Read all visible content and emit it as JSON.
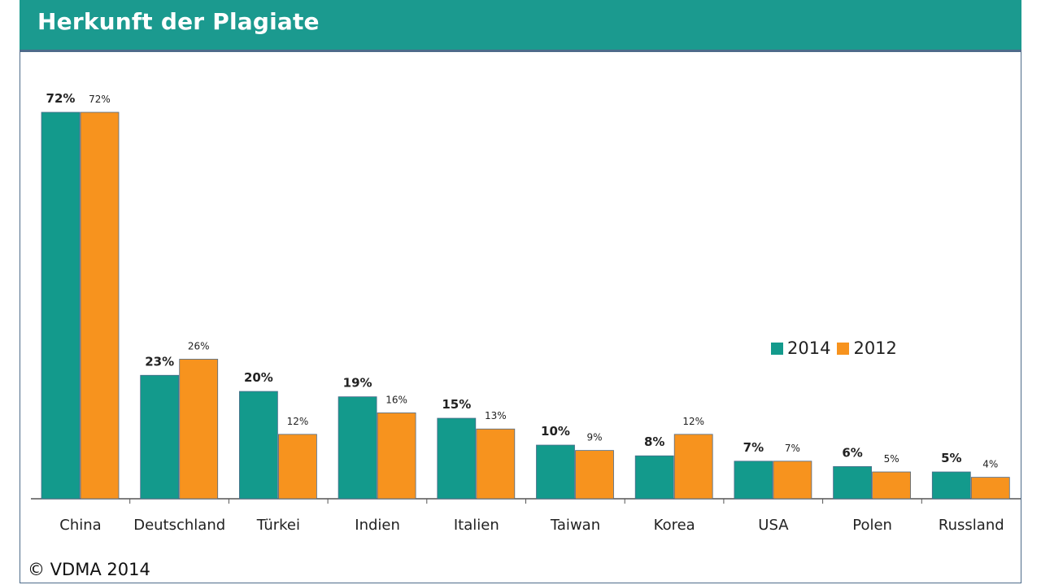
{
  "title": "Herkunft der Plagiate",
  "copyright": "© VDMA 2014",
  "colors": {
    "header": "#1b9a8f",
    "series_2014": "#139a8c",
    "series_2012": "#f7931e"
  },
  "chart_data": {
    "type": "bar",
    "title": "Herkunft der Plagiate",
    "xlabel": "",
    "ylabel": "",
    "ylim": [
      0,
      75
    ],
    "grid": false,
    "legend_position": "right",
    "categories": [
      "China",
      "Deutschland",
      "Türkei",
      "Indien",
      "Italien",
      "Taiwan",
      "Korea",
      "USA",
      "Polen",
      "Russland"
    ],
    "series": [
      {
        "name": "2014",
        "color": "#139a8c",
        "values": [
          72,
          23,
          20,
          19,
          15,
          10,
          8,
          7,
          6,
          5
        ],
        "labels": [
          "72%",
          "23%",
          "20%",
          "19%",
          "15%",
          "10%",
          "8%",
          "7%",
          "6%",
          "5%"
        ]
      },
      {
        "name": "2012",
        "color": "#f7931e",
        "values": [
          72,
          26,
          12,
          16,
          13,
          9,
          12,
          7,
          5,
          4
        ],
        "labels": [
          "72%",
          "26%",
          "12%",
          "16%",
          "13%",
          "9%",
          "12%",
          "7%",
          "5%",
          "4%"
        ]
      }
    ]
  }
}
